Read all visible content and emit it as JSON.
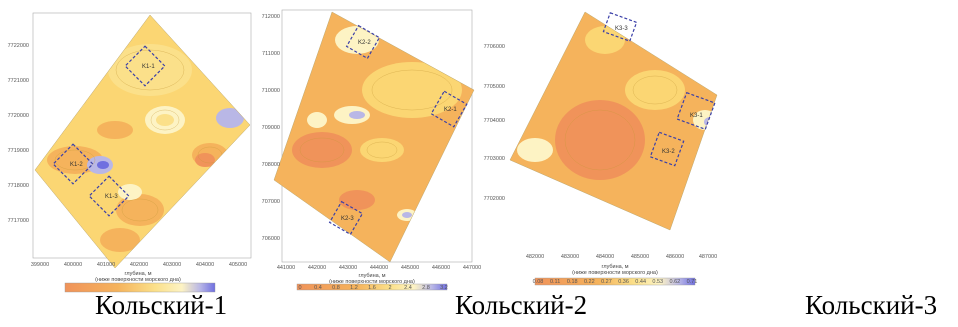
{
  "captions": [
    "Кольский-1",
    "Кольский-2",
    "Кольский-3"
  ],
  "maps": [
    {
      "name": "Кольский-1",
      "y_ticks": [
        "7722000",
        "7721000",
        "7720000",
        "7719000",
        "7718000",
        "7717000"
      ],
      "x_ticks": [
        "399000",
        "400000",
        "401000",
        "402000",
        "403000",
        "404000",
        "405000"
      ],
      "legend_title": "глубина, м",
      "legend_subtitle": "(ниже поверхности морского дна)",
      "boxes": [
        "K1-1",
        "K1-2",
        "K1-3"
      ]
    },
    {
      "name": "Кольский-2",
      "y_ticks": [
        "7712000",
        "7711000",
        "7710000",
        "7709000",
        "7708000",
        "7707000",
        "7706000"
      ],
      "x_ticks": [
        "441000",
        "442000",
        "443000",
        "444000",
        "445000",
        "446000",
        "447000"
      ],
      "legend_title": "глубина, м",
      "legend_subtitle": "(ниже поверхности морского дна)",
      "legend_values": [
        "0",
        "0.4",
        "0.8",
        "1.2",
        "1.6",
        "2",
        "2.4",
        "2.8",
        "3.2"
      ],
      "boxes": [
        "K2-1",
        "K2-2",
        "K2-3"
      ]
    },
    {
      "name": "Кольский-3",
      "y_ticks": [
        "7706000",
        "7705000",
        "7704000",
        "7703000",
        "7702000"
      ],
      "x_ticks": [
        "482000",
        "483000",
        "484000",
        "485000",
        "486000",
        "487000"
      ],
      "legend_title": "глубина, м",
      "legend_subtitle": "(ниже поверхности морского дна)",
      "legend_values": [
        "0.08",
        "0.11",
        "0.18",
        "0.22",
        "0.27",
        "0.36",
        "0.44",
        "0.53",
        "0.62",
        "0.71"
      ],
      "boxes": [
        "K3-1",
        "K3-2",
        "K3-3"
      ]
    }
  ],
  "colors": {
    "deep_orange": "#f0935a",
    "orange": "#f5b35c",
    "yellow": "#fbe08a",
    "pale": "#fdf3c4",
    "lavender": "#b9b7e6",
    "blue": "#6f6fe0",
    "box_outline": "#3a3fa8"
  }
}
